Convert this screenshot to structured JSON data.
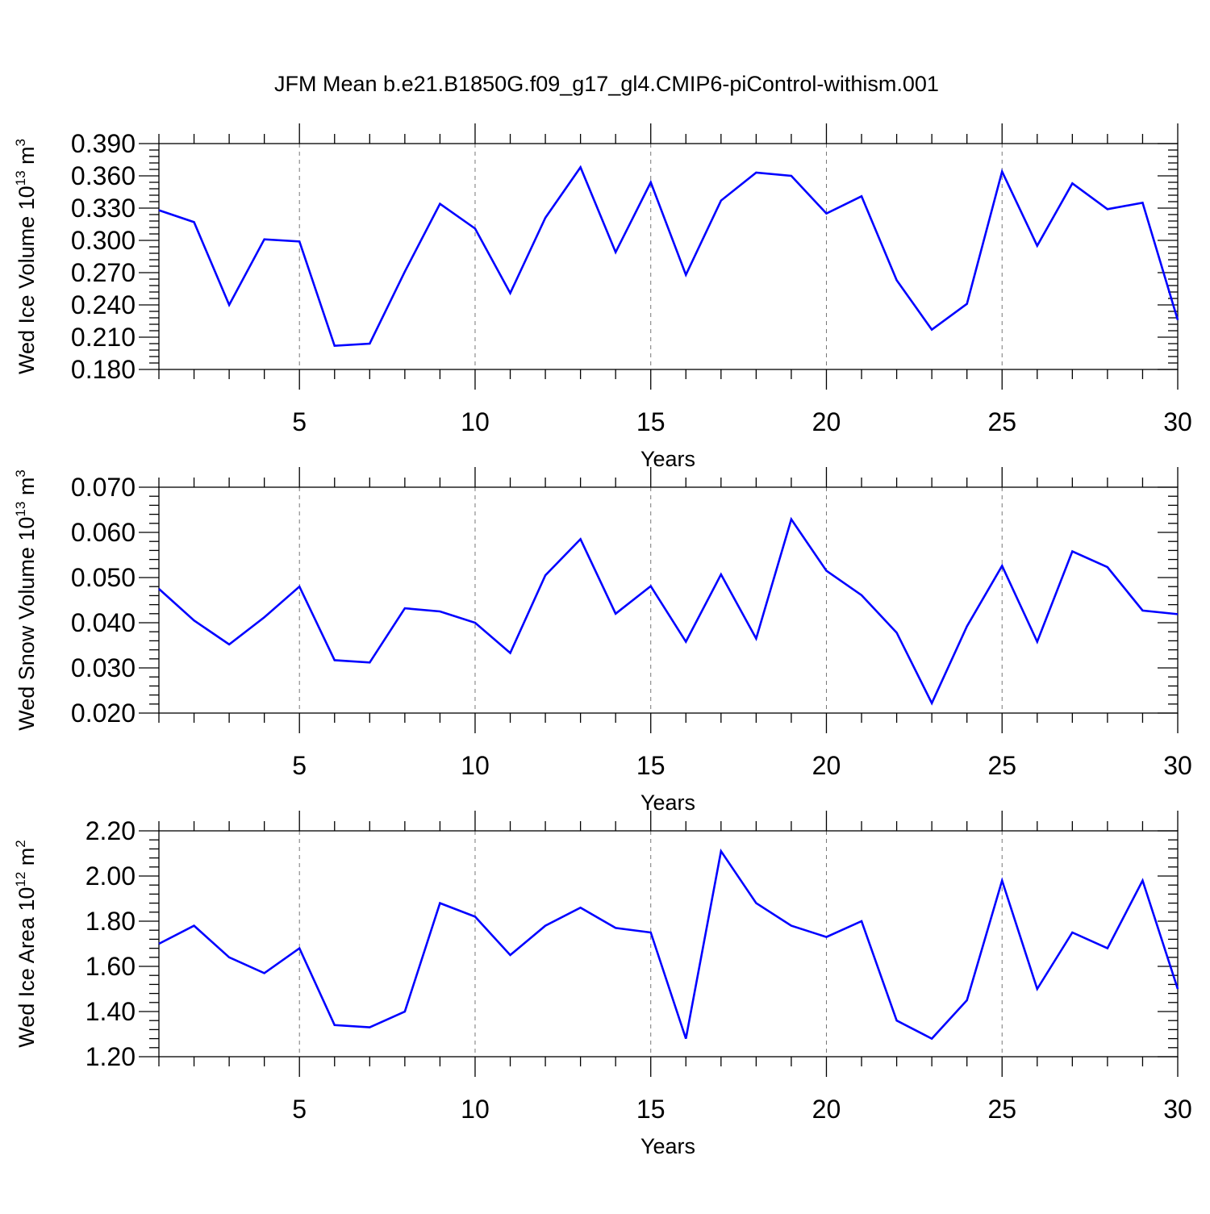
{
  "chart_data": {
    "title": "JFM Mean b.e21.B1850G.f09_g17_gl4.CMIP6-piControl-withism.001",
    "type": "line",
    "colors": {
      "line": "#0000ff",
      "grid": "#777777",
      "axis": "#000000"
    },
    "panels": [
      {
        "type": "line",
        "xlabel": "Years",
        "ylabel": {
          "base": "Wed Ice Volume 10",
          "exp": "13",
          "unit_base": " m",
          "unit_exp": "3"
        },
        "xlim": [
          1,
          30
        ],
        "ylim": [
          0.18,
          0.39
        ],
        "xticks": [
          5,
          10,
          15,
          20,
          25,
          30
        ],
        "yticks": [
          0.18,
          0.21,
          0.24,
          0.27,
          0.3,
          0.33,
          0.36,
          0.39
        ],
        "ytick_labels": [
          "0.180",
          "0.210",
          "0.240",
          "0.270",
          "0.300",
          "0.330",
          "0.360",
          "0.390"
        ],
        "x": [
          1,
          2,
          3,
          4,
          5,
          6,
          7,
          8,
          9,
          10,
          11,
          12,
          13,
          14,
          15,
          16,
          17,
          18,
          19,
          20,
          21,
          22,
          23,
          24,
          25,
          26,
          27,
          28,
          29,
          30
        ],
        "values": [
          0.328,
          0.317,
          0.24,
          0.301,
          0.299,
          0.202,
          0.204,
          0.271,
          0.334,
          0.311,
          0.251,
          0.321,
          0.368,
          0.289,
          0.354,
          0.268,
          0.337,
          0.363,
          0.36,
          0.325,
          0.341,
          0.263,
          0.217,
          0.241,
          0.364,
          0.295,
          0.353,
          0.329,
          0.335,
          0.226
        ]
      },
      {
        "type": "line",
        "xlabel": "Years",
        "ylabel": {
          "base": "Wed Snow Volume 10",
          "exp": "13",
          "unit_base": " m",
          "unit_exp": "3"
        },
        "xlim": [
          1,
          30
        ],
        "ylim": [
          0.02,
          0.07
        ],
        "xticks": [
          5,
          10,
          15,
          20,
          25,
          30
        ],
        "yticks": [
          0.02,
          0.03,
          0.04,
          0.05,
          0.06,
          0.07
        ],
        "ytick_labels": [
          "0.020",
          "0.030",
          "0.040",
          "0.050",
          "0.060",
          "0.070"
        ],
        "x": [
          1,
          2,
          3,
          4,
          5,
          6,
          7,
          8,
          9,
          10,
          11,
          12,
          13,
          14,
          15,
          16,
          17,
          18,
          19,
          20,
          21,
          22,
          23,
          24,
          25,
          26,
          27,
          28,
          29,
          30
        ],
        "values": [
          0.0475,
          0.0405,
          0.0352,
          0.0412,
          0.048,
          0.0317,
          0.0312,
          0.0432,
          0.0425,
          0.04,
          0.0333,
          0.0505,
          0.0585,
          0.042,
          0.0481,
          0.0358,
          0.0507,
          0.0365,
          0.0629,
          0.0515,
          0.0461,
          0.0378,
          0.0222,
          0.0392,
          0.0526,
          0.0358,
          0.0558,
          0.0523,
          0.0427,
          0.0419
        ]
      },
      {
        "type": "line",
        "xlabel": "Years",
        "ylabel": {
          "base": "Wed Ice Area 10",
          "exp": "12",
          "unit_base": " m",
          "unit_exp": "2"
        },
        "xlim": [
          1,
          30
        ],
        "ylim": [
          1.2,
          2.2
        ],
        "xticks": [
          5,
          10,
          15,
          20,
          25,
          30
        ],
        "yticks": [
          1.2,
          1.4,
          1.6,
          1.8,
          2.0,
          2.2
        ],
        "ytick_labels": [
          "1.20",
          "1.40",
          "1.60",
          "1.80",
          "2.00",
          "2.20"
        ],
        "x": [
          1,
          2,
          3,
          4,
          5,
          6,
          7,
          8,
          9,
          10,
          11,
          12,
          13,
          14,
          15,
          16,
          17,
          18,
          19,
          20,
          21,
          22,
          23,
          24,
          25,
          26,
          27,
          28,
          29,
          30
        ],
        "values": [
          1.7,
          1.78,
          1.64,
          1.57,
          1.68,
          1.34,
          1.33,
          1.4,
          1.88,
          1.82,
          1.65,
          1.78,
          1.86,
          1.77,
          1.75,
          1.28,
          2.11,
          1.88,
          1.78,
          1.73,
          1.8,
          1.36,
          1.28,
          1.45,
          1.98,
          1.5,
          1.75,
          1.68,
          1.98,
          1.5
        ]
      }
    ]
  }
}
